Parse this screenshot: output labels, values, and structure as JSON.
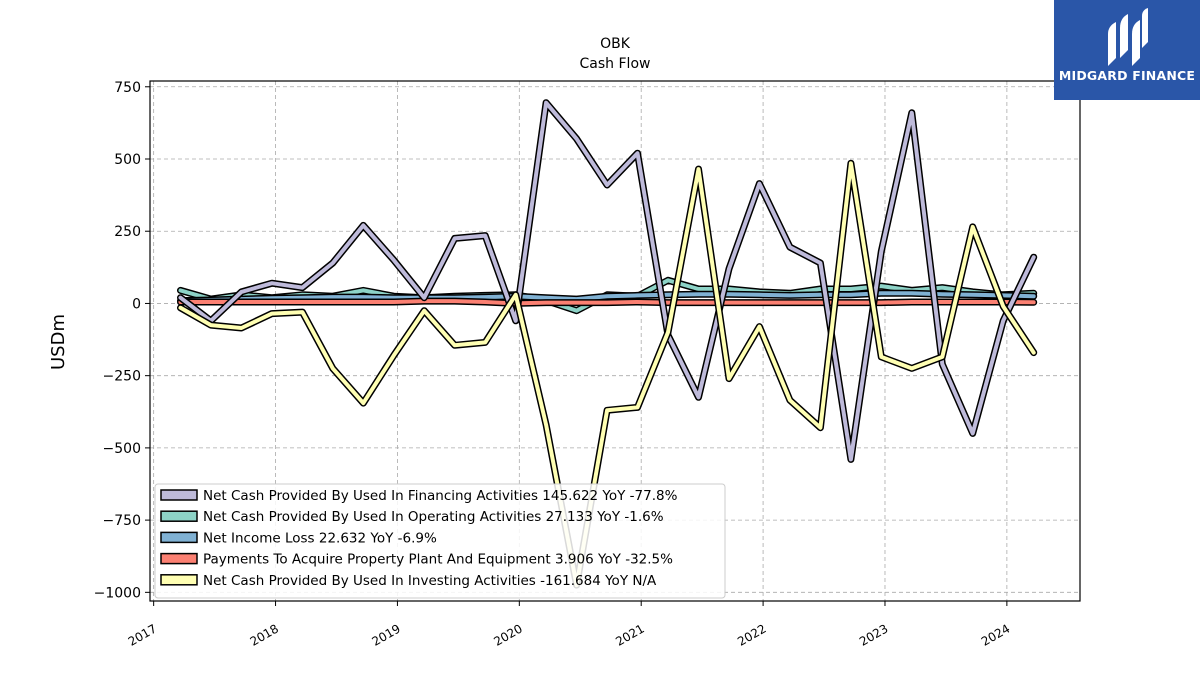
{
  "logo": {
    "text": "MIDGARD FINANCE"
  },
  "chart_data": {
    "type": "line",
    "title": "OBK",
    "subtitle": "Cash Flow",
    "ylabel": "USDm",
    "xlabel": "",
    "ylim": [
      -1030,
      770
    ],
    "xlim": [
      2016.97,
      2024.6
    ],
    "yticks": [
      750,
      500,
      250,
      0,
      -250,
      -500,
      -750,
      -1000
    ],
    "ytick_labels": [
      "750",
      "500",
      "250",
      "0",
      "−250",
      "−500",
      "−750",
      "−1000"
    ],
    "xticks": [
      2017,
      2018,
      2019,
      2020,
      2021,
      2022,
      2023,
      2024
    ],
    "xtick_labels": [
      "2017",
      "2018",
      "2019",
      "2020",
      "2021",
      "2022",
      "2023",
      "2024"
    ],
    "grid": true,
    "legend_position": "lower-left",
    "x": [
      2017.22,
      2017.47,
      2017.72,
      2017.97,
      2018.22,
      2018.47,
      2018.72,
      2018.97,
      2019.22,
      2019.47,
      2019.72,
      2019.97,
      2020.22,
      2020.47,
      2020.72,
      2020.97,
      2021.22,
      2021.47,
      2021.72,
      2021.97,
      2022.22,
      2022.47,
      2022.72,
      2022.97,
      2023.22,
      2023.47,
      2023.72,
      2023.97,
      2024.22
    ],
    "series": [
      {
        "name": "Net Cash Provided By Used In Financing Activities",
        "legend": "Net Cash Provided By Used In Financing Activities  145.622 YoY -77.8%",
        "color": "#bebada",
        "values": [
          20,
          -60,
          40,
          70,
          55,
          140,
          270,
          150,
          20,
          225,
          235,
          -60,
          695,
          570,
          410,
          520,
          -110,
          -325,
          120,
          415,
          195,
          140,
          -540,
          180,
          660,
          -210,
          -450,
          -60,
          160
        ]
      },
      {
        "name": "Net Cash Provided By Used In Operating Activities",
        "legend": "Net Cash Provided By Used In Operating Activities  27.133 YoY -1.6%",
        "color": "#8dd3c7",
        "values": [
          45,
          15,
          30,
          20,
          30,
          25,
          45,
          25,
          20,
          25,
          28,
          30,
          10,
          -25,
          30,
          25,
          80,
          50,
          50,
          40,
          35,
          50,
          50,
          60,
          45,
          55,
          40,
          30,
          35
        ]
      },
      {
        "name": "Net Income Loss",
        "legend": "Net Income Loss  22.632 YoY -6.9%",
        "color": "#80b1d3",
        "values": [
          10,
          12,
          15,
          18,
          20,
          22,
          22,
          20,
          20,
          20,
          22,
          25,
          20,
          15,
          25,
          28,
          30,
          32,
          32,
          30,
          28,
          30,
          30,
          35,
          35,
          32,
          30,
          28,
          25
        ]
      },
      {
        "name": "Payments To Acquire Property Plant And Equipment",
        "legend": "Payments To Acquire Property Plant And Equipment  3.906 YoY -32.5%",
        "color": "#fb8072",
        "values": [
          5,
          5,
          5,
          5,
          5,
          5,
          5,
          5,
          8,
          8,
          5,
          0,
          3,
          3,
          3,
          5,
          3,
          3,
          3,
          3,
          3,
          3,
          3,
          3,
          5,
          5,
          5,
          5,
          4
        ]
      },
      {
        "name": "Net Cash Provided By Used In Investing Activities",
        "legend": "Net Cash Provided By Used In Investing Activities  -161.684 YoY N/A",
        "color": "#ffffb3",
        "values": [
          -15,
          -75,
          -85,
          -35,
          -30,
          -225,
          -345,
          -180,
          -25,
          -145,
          -135,
          30,
          -420,
          -975,
          -370,
          -360,
          -100,
          465,
          -260,
          -80,
          -335,
          -430,
          485,
          -185,
          -225,
          -185,
          265,
          -10,
          -170
        ]
      }
    ]
  }
}
